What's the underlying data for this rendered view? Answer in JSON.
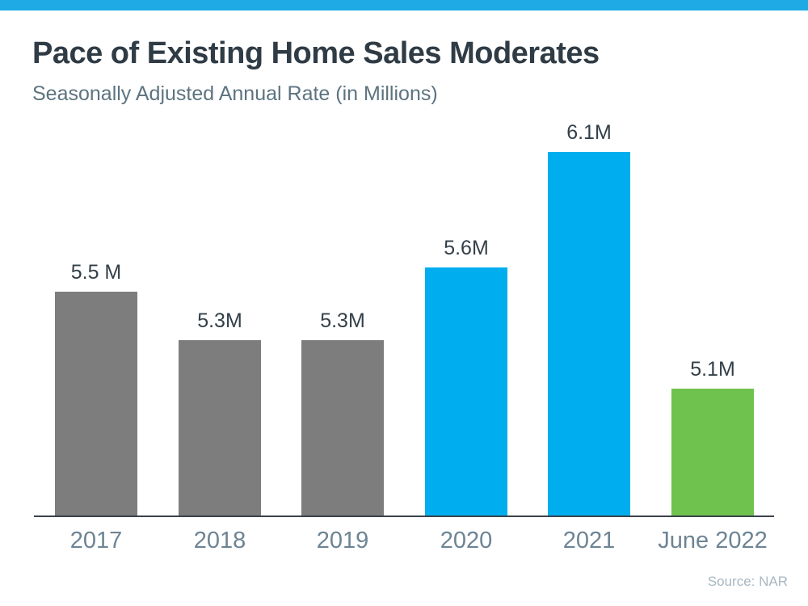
{
  "colors": {
    "accent_strip": "#1FAAE6",
    "bar_gray": "#7D7D7D",
    "bar_blue": "#00AEEF",
    "bar_green": "#6FC24E",
    "title_text": "#2F3B45",
    "subtitle_text": "#5D7380",
    "value_label_text": "#333F48",
    "axis_label_text": "#6D8494",
    "axis_line": "#3A4149",
    "source_text": "#A9B7C1"
  },
  "chart_data": {
    "type": "bar",
    "title": "Pace of Existing Home Sales Moderates",
    "subtitle": "Seasonally Adjusted Annual Rate (in Millions)",
    "source": "Source: NAR",
    "categories": [
      "2017",
      "2018",
      "2019",
      "2020",
      "2021",
      "June 2022"
    ],
    "values": [
      5.5,
      5.3,
      5.3,
      5.6,
      6.1,
      5.1
    ],
    "value_labels": [
      "5.5 M",
      "5.3M",
      "5.3M",
      "5.6M",
      "6.1M",
      "5.1M"
    ],
    "bar_colors": [
      "#7D7D7D",
      "#7D7D7D",
      "#7D7D7D",
      "#00AEEF",
      "#00AEEF",
      "#6FC24E"
    ],
    "xlabel": "",
    "ylabel": "",
    "ylim": [
      4.58,
      6.2
    ],
    "grid": false,
    "legend": false
  }
}
